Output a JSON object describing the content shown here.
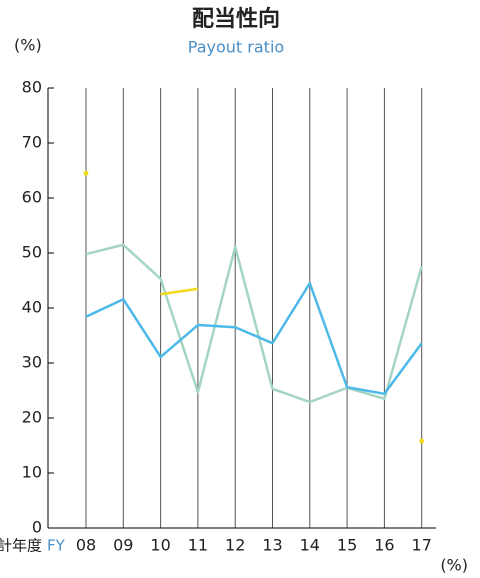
{
  "chart_data": {
    "type": "line",
    "title": "配当性向",
    "subtitle": "Payout ratio",
    "y_unit": "(%)",
    "x_unit": "(%)",
    "x_label": "会計年度",
    "x_label_en": "FY",
    "categories": [
      "08",
      "09",
      "10",
      "11",
      "12",
      "13",
      "14",
      "15",
      "16",
      "17"
    ],
    "series": [
      {
        "color": "#a3d5c2",
        "values": [
          49.8,
          51.5,
          45.3,
          24.7,
          51.1,
          25.3,
          22.9,
          25.5,
          23.5,
          47.6
        ]
      },
      {
        "color": "#4db9e8",
        "values": [
          38.4,
          41.6,
          31.1,
          36.9,
          36.5,
          33.6,
          44.5,
          25.6,
          24.4,
          33.6
        ]
      },
      {
        "color": "#f2da1e",
        "values": [
          64.5,
          null,
          42.5,
          43.5,
          null,
          null,
          null,
          null,
          null,
          15.8
        ]
      }
    ],
    "ylim": [
      0,
      80
    ],
    "yticks": [
      0,
      10,
      20,
      30,
      40,
      50,
      60,
      70,
      80
    ],
    "grid": true
  }
}
